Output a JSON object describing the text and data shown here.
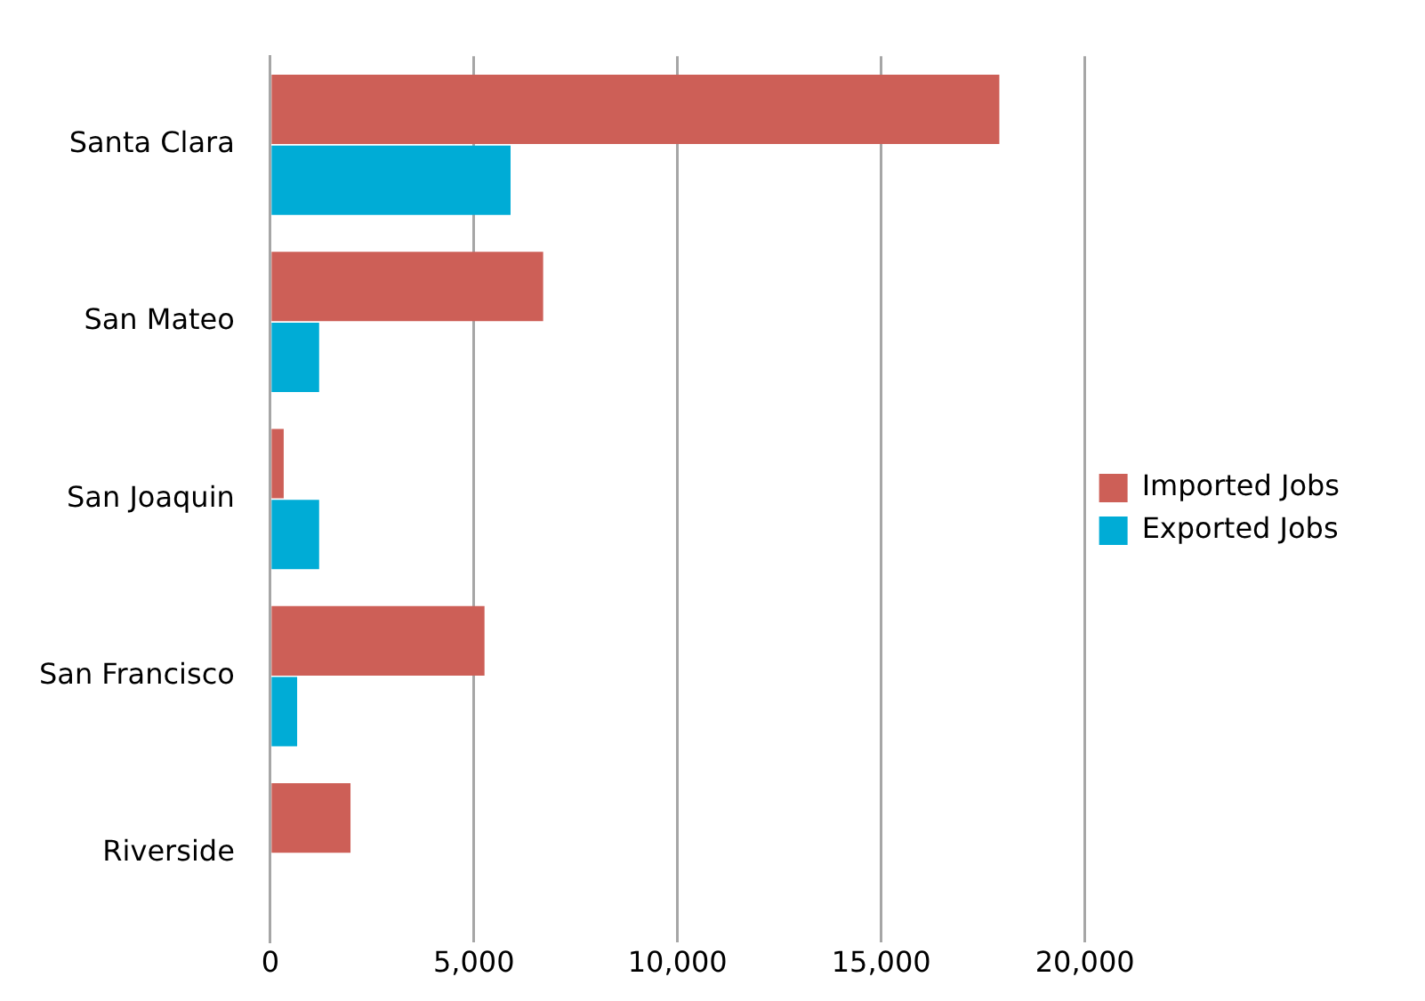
{
  "chart_data": {
    "type": "bar",
    "orientation": "horizontal",
    "categories": [
      "Santa Clara",
      "San Mateo",
      "San Joaquin",
      "San Francisco",
      "Riverside"
    ],
    "series": [
      {
        "name": "Imported Jobs",
        "color": "#cd5f57",
        "values": [
          17900,
          6700,
          330,
          5260,
          1970
        ]
      },
      {
        "name": "Exported Jobs",
        "color": "#00acd6",
        "values": [
          5900,
          1200,
          1200,
          660,
          null
        ]
      }
    ],
    "xlim": [
      0,
      20000
    ],
    "xticks": [
      {
        "value": 0,
        "label": "0"
      },
      {
        "value": 5000,
        "label": "5,000"
      },
      {
        "value": 10000,
        "label": "10,000"
      },
      {
        "value": 15000,
        "label": "15,000"
      },
      {
        "value": 20000,
        "label": "20,000"
      }
    ],
    "grid": "x",
    "legend": "right"
  }
}
